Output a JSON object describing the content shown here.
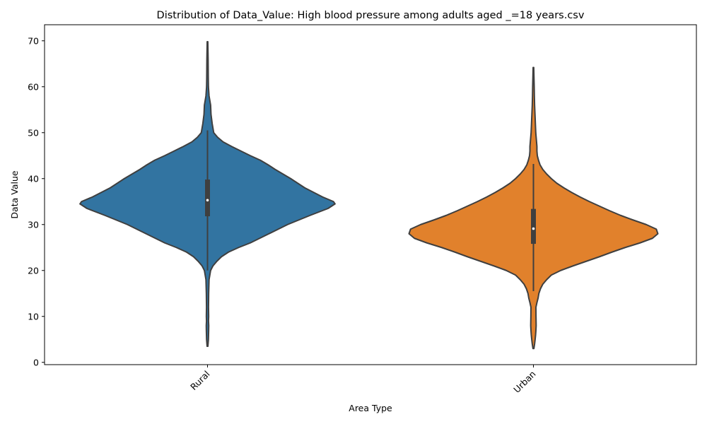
{
  "chart_data": {
    "type": "violin",
    "title": "Distribution of Data_Value: High blood pressure among adults aged _=18 years.csv",
    "xlabel": "Area Type",
    "ylabel": "Data Value",
    "ylim": [
      -0.5,
      73.5
    ],
    "yticks": [
      0,
      10,
      20,
      30,
      40,
      50,
      60,
      70
    ],
    "categories": [
      "Rural",
      "Urban"
    ],
    "x_tick_rotation_deg": 45,
    "grid": false,
    "legend": "none",
    "violins": [
      {
        "category": "Rural",
        "color": "#3274a1",
        "min": 3.5,
        "max": 69.8,
        "q1": 31.8,
        "median": 35.3,
        "q3": 39.8,
        "whisker_low": 20,
        "whisker_high": 50.5,
        "density": [
          [
            3.5,
            0.005
          ],
          [
            5,
            0.012
          ],
          [
            7,
            0.015
          ],
          [
            8,
            0.016
          ],
          [
            9,
            0.013
          ],
          [
            10,
            0.015
          ],
          [
            12,
            0.013
          ],
          [
            15,
            0.015
          ],
          [
            18,
            0.02
          ],
          [
            20,
            0.04
          ],
          [
            21,
            0.07
          ],
          [
            22,
            0.12
          ],
          [
            23,
            0.18
          ],
          [
            24,
            0.27
          ],
          [
            25,
            0.4
          ],
          [
            26,
            0.55
          ],
          [
            28,
            0.79
          ],
          [
            30,
            1.03
          ],
          [
            32,
            1.32
          ],
          [
            33.5,
            1.55
          ],
          [
            34.5,
            1.64
          ],
          [
            35,
            1.62
          ],
          [
            36,
            1.48
          ],
          [
            38,
            1.25
          ],
          [
            40,
            1.07
          ],
          [
            41,
            0.97
          ],
          [
            42,
            0.87
          ],
          [
            43,
            0.78
          ],
          [
            44,
            0.68
          ],
          [
            45,
            0.55
          ],
          [
            46,
            0.43
          ],
          [
            47,
            0.31
          ],
          [
            48,
            0.2
          ],
          [
            49,
            0.13
          ],
          [
            50,
            0.08
          ],
          [
            52,
            0.06
          ],
          [
            54,
            0.045
          ],
          [
            56,
            0.04
          ],
          [
            58,
            0.02
          ],
          [
            60,
            0.012
          ],
          [
            62,
            0.01
          ],
          [
            66,
            0.008
          ],
          [
            69.8,
            0.004
          ]
        ]
      },
      {
        "category": "Urban",
        "color": "#e1812c",
        "min": 3,
        "max": 64.2,
        "q1": 25.8,
        "median": 29.1,
        "q3": 33.4,
        "whisker_low": 15.5,
        "whisker_high": 43.2,
        "density": [
          [
            3,
            0.006
          ],
          [
            4,
            0.015
          ],
          [
            5,
            0.022
          ],
          [
            6,
            0.028
          ],
          [
            7,
            0.032
          ],
          [
            8,
            0.035
          ],
          [
            10,
            0.033
          ],
          [
            12,
            0.032
          ],
          [
            13,
            0.045
          ],
          [
            14,
            0.06
          ],
          [
            15,
            0.07
          ],
          [
            16,
            0.09
          ],
          [
            17,
            0.12
          ],
          [
            18,
            0.17
          ],
          [
            19,
            0.23
          ],
          [
            20,
            0.35
          ],
          [
            21,
            0.51
          ],
          [
            22,
            0.68
          ],
          [
            23,
            0.85
          ],
          [
            24,
            1.01
          ],
          [
            25,
            1.18
          ],
          [
            26,
            1.37
          ],
          [
            27,
            1.53
          ],
          [
            28,
            1.6
          ],
          [
            29,
            1.58
          ],
          [
            30,
            1.45
          ],
          [
            31,
            1.28
          ],
          [
            32,
            1.12
          ],
          [
            33,
            0.98
          ],
          [
            34,
            0.85
          ],
          [
            35,
            0.72
          ],
          [
            36,
            0.6
          ],
          [
            37,
            0.49
          ],
          [
            38,
            0.39
          ],
          [
            39,
            0.3
          ],
          [
            40,
            0.23
          ],
          [
            41,
            0.17
          ],
          [
            42,
            0.12
          ],
          [
            43,
            0.085
          ],
          [
            44,
            0.065
          ],
          [
            45,
            0.05
          ],
          [
            46,
            0.045
          ],
          [
            47,
            0.045
          ],
          [
            48,
            0.04
          ],
          [
            49,
            0.035
          ],
          [
            50,
            0.03
          ],
          [
            52,
            0.025
          ],
          [
            54,
            0.02
          ],
          [
            56,
            0.015
          ],
          [
            58,
            0.012
          ],
          [
            60,
            0.01
          ],
          [
            62,
            0.007
          ],
          [
            64.2,
            0.004
          ]
        ]
      }
    ]
  }
}
